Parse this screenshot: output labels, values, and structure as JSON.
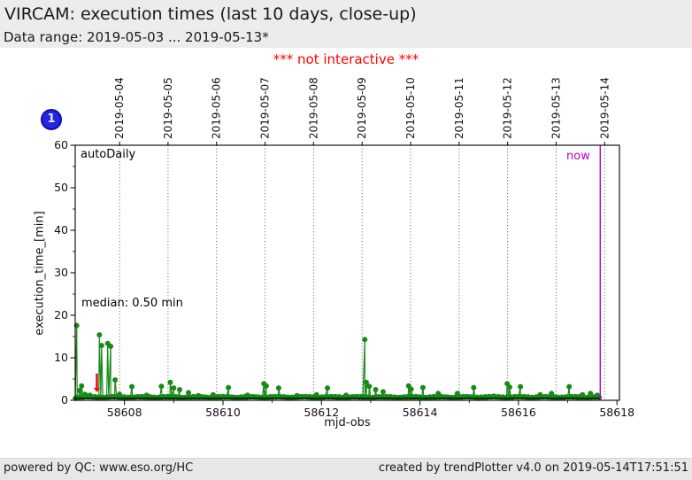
{
  "header": {
    "title": "VIRCAM: execution times (last 10 days, close-up)",
    "subtitle": "Data range: 2019-05-03 ... 2019-05-13*"
  },
  "notice": {
    "text": "*** not interactive ***",
    "color": "#ff0000"
  },
  "badge": {
    "label": "1",
    "fill": "#2626e0",
    "border": "#0d0da8"
  },
  "plot_annotations": {
    "dataset_label": "autoDaily",
    "median_label": "median: 0.50 min",
    "now_label": "now"
  },
  "footer": {
    "left": "powered by QC: www.eso.org/HC",
    "right": "created by trendPlotter v4.0 on 2019-05-14T17:51:51"
  },
  "colors": {
    "header_bg": "#ececec",
    "footer_bg": "#e7e7e7",
    "series_green": "#178a17",
    "now_magenta": "#c000c0",
    "arrow_red": "#ee1111",
    "grid": "#444444",
    "axis": "#000000",
    "median_line": "#000000"
  },
  "chart_data": {
    "type": "line",
    "title": "VIRCAM: execution times (last 10 days, close-up)",
    "xlabel": "mjd-obs",
    "ylabel": "execution_time_[min]",
    "xlim": [
      58607,
      58618.05
    ],
    "ylim": [
      0,
      60
    ],
    "x_ticks": [
      58608,
      58610,
      58612,
      58614,
      58616,
      58618
    ],
    "x_minor_tick_step": 1,
    "y_ticks": [
      0,
      10,
      20,
      30,
      40,
      50,
      60
    ],
    "y_minor_tick_step": 5,
    "grid": "dotted vertical lines at night boundaries",
    "top_axis_dates": [
      {
        "label": "2019-05-04",
        "mjd": 58607.9
      },
      {
        "label": "2019-05-05",
        "mjd": 58608.885
      },
      {
        "label": "2019-05-06",
        "mjd": 58609.87
      },
      {
        "label": "2019-05-07",
        "mjd": 58610.855
      },
      {
        "label": "2019-05-08",
        "mjd": 58611.84
      },
      {
        "label": "2019-05-09",
        "mjd": 58612.825
      },
      {
        "label": "2019-05-10",
        "mjd": 58613.81
      },
      {
        "label": "2019-05-11",
        "mjd": 58614.795
      },
      {
        "label": "2019-05-12",
        "mjd": 58615.78
      },
      {
        "label": "2019-05-13",
        "mjd": 58616.765
      },
      {
        "label": "2019-05-14",
        "mjd": 58617.75
      }
    ],
    "median_min": 0.5,
    "now_mjd": 58617.66,
    "series": [
      {
        "name": "autoDaily execution_time",
        "color": "#178a17",
        "marker": "circle",
        "spike_points": [
          [
            58607.03,
            17.6
          ],
          [
            58607.08,
            2.3
          ],
          [
            58607.13,
            3.4
          ],
          [
            58607.2,
            1.4
          ],
          [
            58607.3,
            1.2
          ],
          [
            58607.49,
            15.4
          ],
          [
            58607.535,
            12.9
          ],
          [
            58607.66,
            13.4
          ],
          [
            58607.72,
            12.7
          ],
          [
            58607.81,
            4.8
          ],
          [
            58607.9,
            1.4
          ],
          [
            58608.15,
            3.2
          ],
          [
            58608.45,
            1.2
          ],
          [
            58608.75,
            3.3
          ],
          [
            58608.93,
            4.2
          ],
          [
            58609.0,
            2.9
          ],
          [
            58609.12,
            2.5
          ],
          [
            58609.3,
            1.8
          ],
          [
            58609.5,
            1.1
          ],
          [
            58609.8,
            1.3
          ],
          [
            58610.11,
            3.0
          ],
          [
            58610.5,
            1.2
          ],
          [
            58610.83,
            3.9
          ],
          [
            58610.88,
            3.4
          ],
          [
            58611.13,
            2.9
          ],
          [
            58611.5,
            1.1
          ],
          [
            58611.9,
            1.3
          ],
          [
            58612.12,
            2.9
          ],
          [
            58612.5,
            1.2
          ],
          [
            58612.88,
            14.3
          ],
          [
            58612.91,
            4.2
          ],
          [
            58612.97,
            3.3
          ],
          [
            58613.1,
            2.5
          ],
          [
            58613.25,
            2.0
          ],
          [
            58613.77,
            3.4
          ],
          [
            58613.82,
            2.6
          ],
          [
            58614.06,
            3.0
          ],
          [
            58614.37,
            1.6
          ],
          [
            58614.76,
            1.6
          ],
          [
            58615.09,
            3.0
          ],
          [
            58615.5,
            1.0
          ],
          [
            58615.77,
            3.9
          ],
          [
            58615.82,
            3.1
          ],
          [
            58616.04,
            3.2
          ],
          [
            58616.44,
            1.3
          ],
          [
            58616.67,
            1.6
          ],
          [
            58617.03,
            3.2
          ],
          [
            58617.3,
            1.3
          ],
          [
            58617.46,
            1.6
          ],
          [
            58617.6,
            1.2
          ]
        ],
        "baseline_band": {
          "mjd_start": 58607.0,
          "mjd_end": 58617.66,
          "step": 0.04,
          "base": 0.42,
          "amp1": 0.28,
          "amp2": 0.22,
          "note": "dense scatter of ~0.4-0.9 min points forming a solid green band along y~0.5"
        }
      }
    ],
    "outlier_arrow": {
      "mjd": 58607.44,
      "from_min": 6.3,
      "to_min": 1.9
    }
  }
}
